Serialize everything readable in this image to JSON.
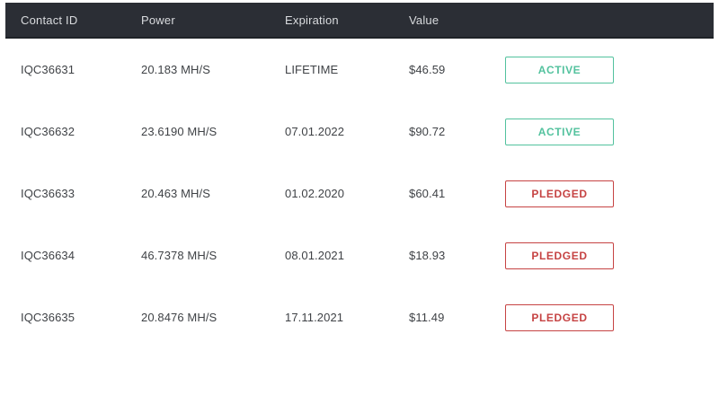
{
  "colors": {
    "header_bg": "#2b2e35",
    "header_text": "#d9dbde",
    "row_text": "#3f4246",
    "status_active": "#53c29e",
    "status_pledged": "#c64343"
  },
  "table": {
    "columns": [
      {
        "key": "contact_id",
        "label": "Contact ID"
      },
      {
        "key": "power",
        "label": "Power"
      },
      {
        "key": "expiration",
        "label": "Expiration"
      },
      {
        "key": "value",
        "label": "Value"
      }
    ],
    "rows": [
      {
        "contact_id": "IQC36631",
        "power": "20.183 MH/S",
        "expiration": "LIFETIME",
        "value": "$46.59",
        "status": "ACTIVE"
      },
      {
        "contact_id": "IQC36632",
        "power": "23.6190 MH/S",
        "expiration": "07.01.2022",
        "value": "$90.72",
        "status": "ACTIVE"
      },
      {
        "contact_id": "IQC36633",
        "power": "20.463 MH/S",
        "expiration": "01.02.2020",
        "value": "$60.41",
        "status": "PLEDGED"
      },
      {
        "contact_id": "IQC36634",
        "power": "46.7378 MH/S",
        "expiration": "08.01.2021",
        "value": "$18.93",
        "status": "PLEDGED"
      },
      {
        "contact_id": "IQC36635",
        "power": "20.8476 MH/S",
        "expiration": "17.11.2021",
        "value": "$11.49",
        "status": "PLEDGED"
      }
    ]
  }
}
